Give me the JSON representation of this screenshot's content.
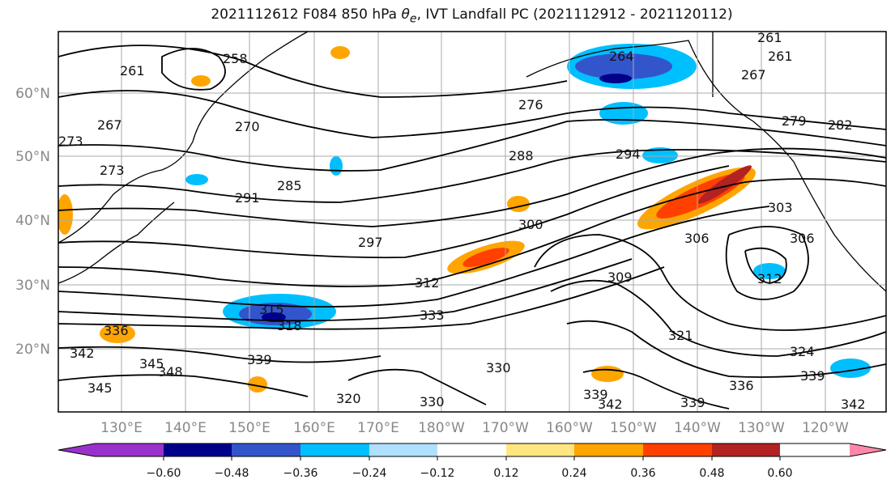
{
  "title": {
    "prefix": "2021112612 F084 850 hPa ",
    "theta_symbol": "θ",
    "theta_sub": "e",
    "suffix": ", IVT Landfall PC (2021112912 - 2021120112)"
  },
  "map": {
    "lat_labels": [
      "60°N",
      "50°N",
      "40°N",
      "30°N",
      "20°N"
    ],
    "lon_labels": [
      "130°E",
      "140°E",
      "150°E",
      "160°E",
      "170°E",
      "180°W",
      "170°W",
      "160°W",
      "150°W",
      "140°W",
      "130°W",
      "120°W"
    ],
    "contour_labels": [
      "261",
      "258",
      "267",
      "270",
      "273",
      "273",
      "285",
      "291",
      "297",
      "300",
      "312",
      "315",
      "318",
      "333",
      "336",
      "342",
      "345",
      "348",
      "345",
      "339",
      "330",
      "320",
      "330",
      "288",
      "294",
      "276",
      "264",
      "261",
      "261",
      "267",
      "279",
      "282",
      "303",
      "306",
      "309",
      "312",
      "321",
      "324",
      "336",
      "339",
      "339",
      "342",
      "339",
      "342",
      "306"
    ]
  },
  "colorbar": {
    "ticks": [
      "−0.60",
      "−0.48",
      "−0.36",
      "−0.24",
      "−0.12",
      "0.12",
      "0.24",
      "0.36",
      "0.48",
      "0.60"
    ],
    "colors": [
      "#9932cc",
      "#00008b",
      "#3355cc",
      "#00bfff",
      "#b0e0ff",
      "#ffffff",
      "#ffe680",
      "#ffa500",
      "#ff4000",
      "#b22222",
      "#ff88aa"
    ]
  }
}
